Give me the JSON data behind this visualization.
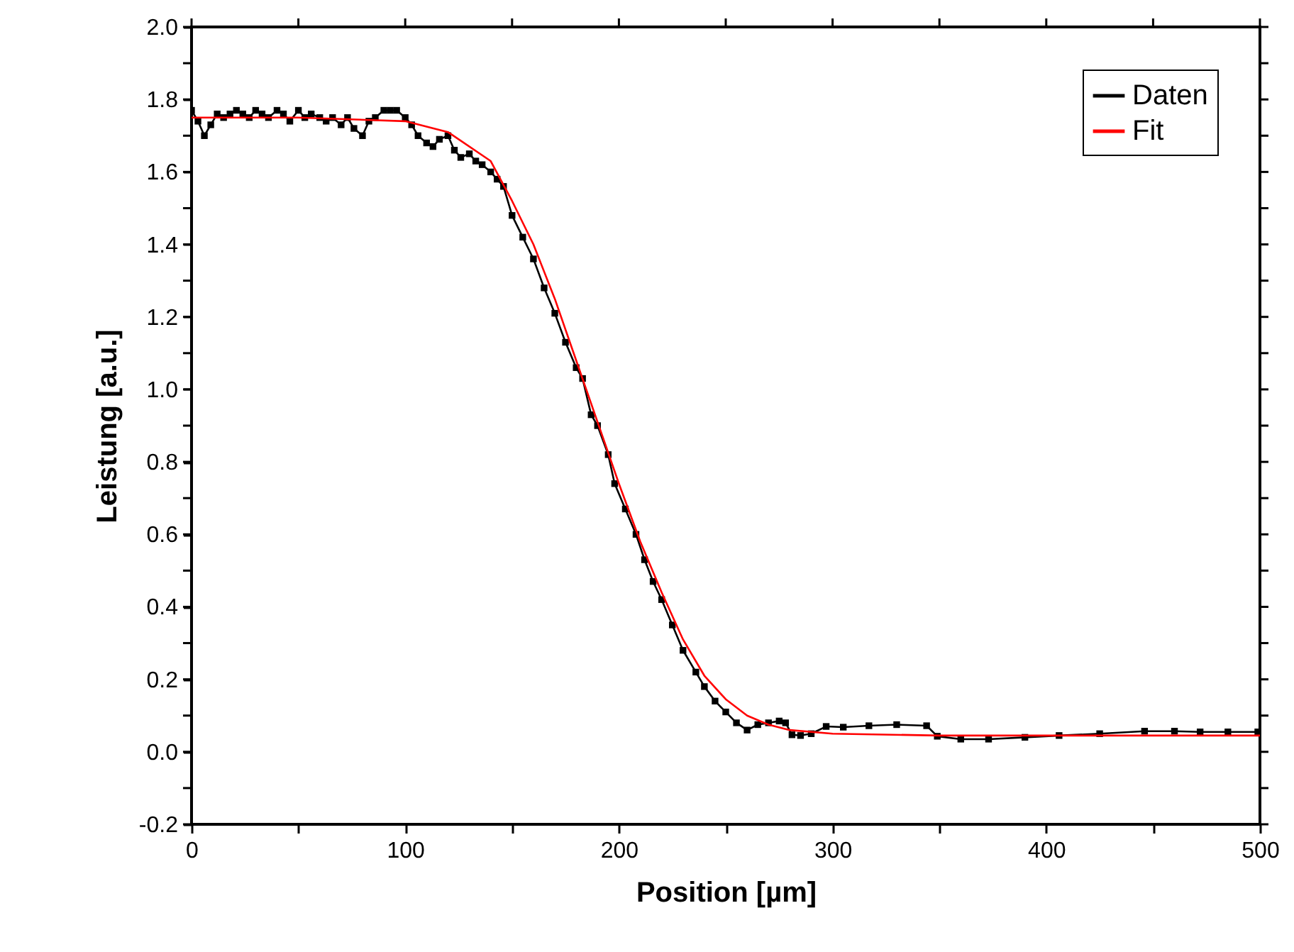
{
  "chart_data": {
    "type": "line",
    "xlabel": "Position [µm]",
    "ylabel": "Leistung [a.u.]",
    "xlim": [
      0,
      500
    ],
    "ylim": [
      -0.2,
      2.0
    ],
    "xticks": [
      0,
      {
        "value": 50,
        "label": null
      },
      100,
      {
        "value": 150,
        "label": null
      },
      200,
      {
        "value": 250,
        "label": null
      },
      300,
      {
        "value": 350,
        "label": null
      },
      400,
      {
        "value": 450,
        "label": null
      },
      500
    ],
    "yticks": [
      -0.2,
      {
        "value": -0.1,
        "label": null
      },
      {
        "value": 0,
        "label": "0.0"
      },
      {
        "value": 0.1,
        "label": null
      },
      0.2,
      {
        "value": 0.3,
        "label": null
      },
      0.4,
      {
        "value": 0.5,
        "label": null
      },
      0.6,
      {
        "value": 0.7,
        "label": null
      },
      0.8,
      {
        "value": 0.9,
        "label": null
      },
      {
        "value": 1,
        "label": "1.0"
      },
      {
        "value": 1.1,
        "label": null
      },
      1.2,
      {
        "value": 1.3,
        "label": null
      },
      1.4,
      {
        "value": 1.5,
        "label": null
      },
      1.6,
      {
        "value": 1.7,
        "label": null
      },
      1.8,
      {
        "value": 1.9,
        "label": null
      },
      {
        "value": 2,
        "label": "2.0"
      }
    ],
    "grid": false,
    "legend": "top right",
    "series": [
      {
        "name": "Daten",
        "color": "#000000",
        "marker": "square",
        "line_style": "solid",
        "x": [
          0,
          3,
          6,
          9,
          12,
          15,
          18,
          21,
          24,
          27,
          30,
          33,
          36,
          40,
          43,
          46,
          50,
          53,
          56,
          60,
          63,
          66,
          70,
          73,
          76,
          80,
          83,
          86,
          90,
          93,
          96,
          100,
          103,
          106,
          110,
          113,
          116,
          120,
          123,
          126,
          130,
          133,
          136,
          140,
          143,
          146,
          150,
          155,
          160,
          165,
          170,
          175,
          180,
          183,
          187,
          190,
          195,
          198,
          203,
          208,
          212,
          216,
          220,
          225,
          230,
          236,
          240,
          245,
          250,
          255,
          260,
          265,
          270,
          275,
          278,
          281,
          285,
          290,
          297,
          305,
          317,
          330,
          344,
          349,
          360,
          373,
          390,
          406,
          425,
          446,
          460,
          472,
          485,
          499
        ],
        "values": [
          1.77,
          1.74,
          1.7,
          1.73,
          1.76,
          1.75,
          1.76,
          1.77,
          1.76,
          1.75,
          1.77,
          1.76,
          1.75,
          1.77,
          1.76,
          1.74,
          1.77,
          1.75,
          1.76,
          1.75,
          1.74,
          1.75,
          1.73,
          1.75,
          1.72,
          1.7,
          1.74,
          1.75,
          1.77,
          1.77,
          1.77,
          1.75,
          1.73,
          1.7,
          1.68,
          1.67,
          1.69,
          1.7,
          1.66,
          1.64,
          1.65,
          1.63,
          1.62,
          1.6,
          1.58,
          1.56,
          1.48,
          1.42,
          1.36,
          1.28,
          1.21,
          1.13,
          1.06,
          1.03,
          0.93,
          0.9,
          0.82,
          0.74,
          0.67,
          0.6,
          0.53,
          0.47,
          0.42,
          0.35,
          0.28,
          0.22,
          0.18,
          0.14,
          0.11,
          0.08,
          0.06,
          0.075,
          0.08,
          0.085,
          0.08,
          0.047,
          0.045,
          0.05,
          0.07,
          0.068,
          0.072,
          0.075,
          0.072,
          0.043,
          0.035,
          0.035,
          0.04,
          0.045,
          0.05,
          0.057,
          0.057,
          0.055,
          0.055,
          0.055
        ]
      },
      {
        "name": "Fit",
        "color": "#ff0000",
        "marker": "none",
        "line_style": "solid",
        "x": [
          0,
          50,
          100,
          120,
          140,
          150,
          160,
          170,
          180,
          190,
          200,
          210,
          220,
          230,
          240,
          250,
          260,
          270,
          280,
          300,
          350,
          500
        ],
        "values": [
          1.75,
          1.75,
          1.74,
          1.71,
          1.63,
          1.52,
          1.4,
          1.25,
          1.08,
          0.91,
          0.74,
          0.58,
          0.44,
          0.31,
          0.21,
          0.145,
          0.1,
          0.075,
          0.06,
          0.05,
          0.045,
          0.045
        ]
      }
    ]
  }
}
